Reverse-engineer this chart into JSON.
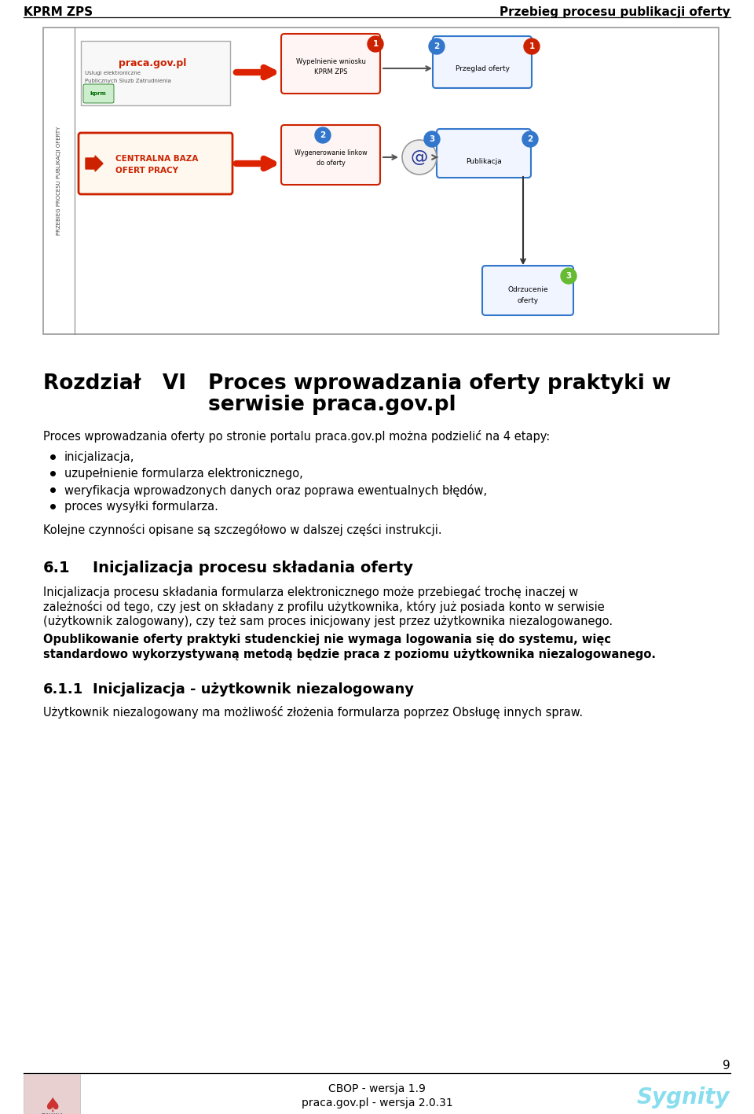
{
  "header_left": "KPRM ZPS",
  "header_right": "Przebieg procesu publikacji oferty",
  "footer_center_line1": "CBOP - wersja 1.9",
  "footer_center_line2": "praca.gov.pl - wersja 2.0.31",
  "footer_page": "9",
  "chapter_label": "Rozdział   VI",
  "chapter_title_line1": "Proces wprowadzania oferty praktyki w",
  "chapter_title_line2": "serwisie praca.gov.pl",
  "intro_text": "Proces wprowadzania oferty po stronie portalu praca.gov.pl można podzielić na 4 etapy:",
  "bullet_items": [
    "inicjalizacja,",
    "uzupełnienie formularza elektronicznego,",
    "weryfikacja wprowadzonych danych oraz poprawa ewentualnych błędów,",
    "proces wysyłki formularza."
  ],
  "kolejne_text": "Kolejne czynności opisane są szczegółowo w dalszej części instrukcji.",
  "section_61_num": "6.1",
  "section_61_title": "Inicjalizacja procesu składania oferty",
  "section_61_body_lines": [
    "Inicjalizacja procesu składania formularza elektronicznego może przebiegać trochę inaczej w",
    "zależności od tego, czy jest on składany z profilu użytkownika, który już posiada konto w serwisie",
    "(użytkownik zalogowany), czy też sam proces inicjowany jest przez użytkownika niezalogowanego."
  ],
  "section_61_bold_lines": [
    "Opublikowanie oferty praktyki studenckiej nie wymaga logowania się do systemu, więc",
    "standardowo wykorzystywaną metodą będzie praca z poziomu użytkownika niezalogowanego."
  ],
  "section_611_num": "6.1.1",
  "section_611_title": "Inicjalizacja - użytkownik niezalogowany",
  "section_611_body": "Użytkownik niezalogowany ma możliwość złożenia formularza poprzez Obsługę innych spraw.",
  "bg_color": "#ffffff",
  "text_color": "#000000"
}
